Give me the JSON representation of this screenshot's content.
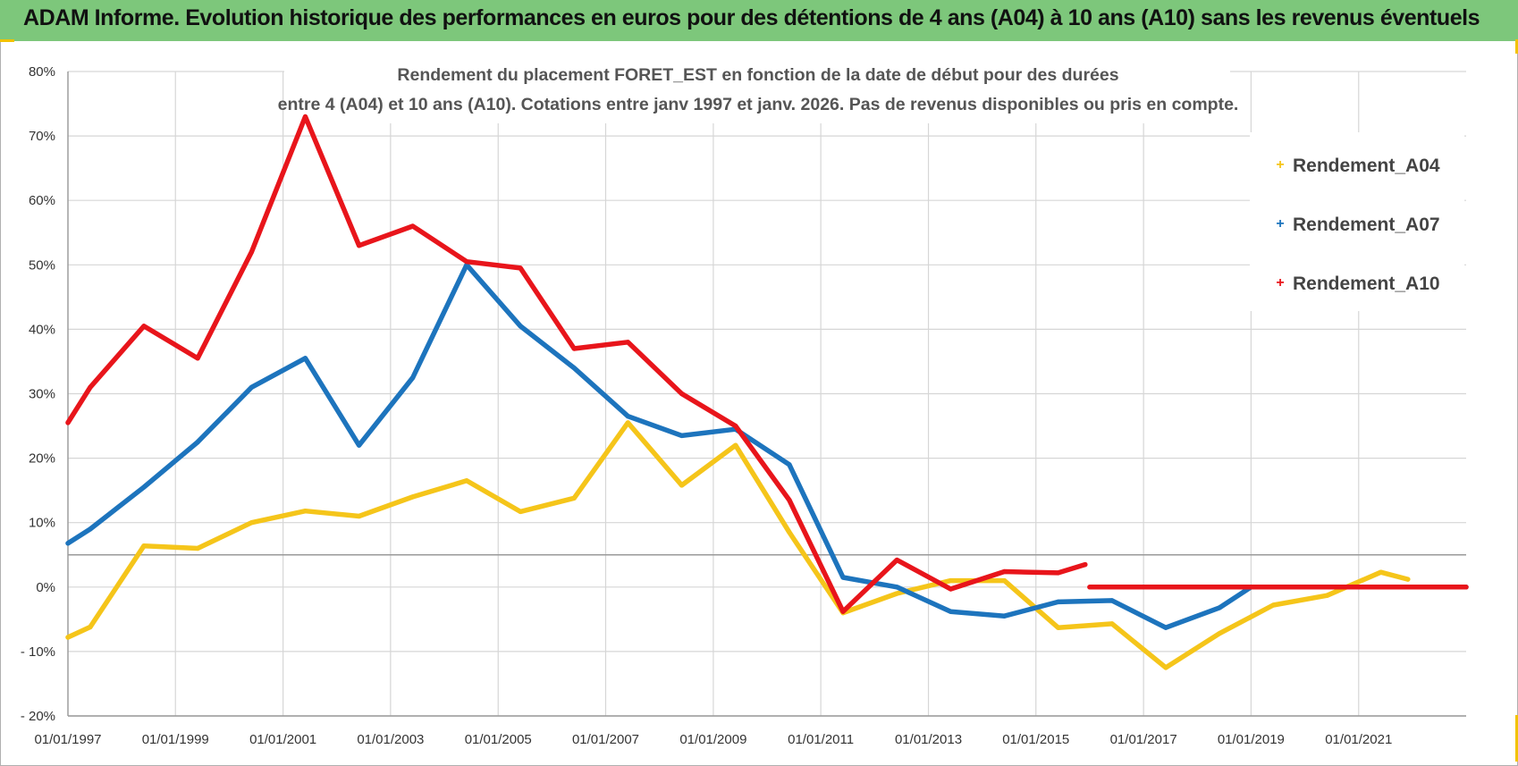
{
  "banner": {
    "title": "ADAM Informe. Evolution historique des performances en euros pour des détentions de 4 ans (A04) à 10 ans (A10) sans les revenus éventuels"
  },
  "colors": {
    "banner_bg": "#7dc77b",
    "A04": "#f5c51a",
    "A07": "#1d74bd",
    "A10": "#e8151b"
  },
  "chart_data": {
    "type": "line",
    "title_line1": "Rendement du placement FORET_EST en fonction de la date de début pour des durées",
    "title_line2": "entre 4 (A04) et 10 ans (A10).  Cotations entre janv 1997 et janv. 2026. Pas de revenus disponibles ou pris en compte.",
    "xlabel": "",
    "ylabel": "",
    "x_ticks": [
      "01/01/1997",
      "01/01/1999",
      "01/01/2001",
      "01/01/2003",
      "01/01/2005",
      "01/01/2007",
      "01/01/2009",
      "01/01/2011",
      "01/01/2013",
      "01/01/2015",
      "01/01/2017",
      "01/01/2019",
      "01/01/2021"
    ],
    "y_ticks": [
      "80%",
      "70%",
      "60%",
      "50%",
      "40%",
      "30%",
      "20%",
      "10%",
      "0%",
      "- 10%",
      "- 20%"
    ],
    "xlim": [
      "1997-01-01",
      "2023-01-01"
    ],
    "ylim": [
      -20,
      80
    ],
    "grid": true,
    "legend_position": "top-right",
    "series": [
      {
        "name": "Rendement_A04",
        "color": "#f5c51a",
        "points": [
          [
            "1997-01-01",
            -7.8
          ],
          [
            "1997-06-01",
            -6.2
          ],
          [
            "1998-06-01",
            6.4
          ],
          [
            "1999-06-01",
            6.0
          ],
          [
            "2000-06-01",
            10.0
          ],
          [
            "2001-06-01",
            11.8
          ],
          [
            "2002-06-01",
            11.0
          ],
          [
            "2003-06-01",
            14.0
          ],
          [
            "2004-06-01",
            16.5
          ],
          [
            "2005-06-01",
            11.7
          ],
          [
            "2006-06-01",
            13.8
          ],
          [
            "2007-06-01",
            25.5
          ],
          [
            "2008-06-01",
            15.8
          ],
          [
            "2009-06-01",
            22.0
          ],
          [
            "2010-06-01",
            8.5
          ],
          [
            "2011-06-01",
            -4.0
          ],
          [
            "2012-06-01",
            -1.0
          ],
          [
            "2013-06-01",
            1.0
          ],
          [
            "2014-06-01",
            1.0
          ],
          [
            "2015-06-01",
            -6.3
          ],
          [
            "2016-06-01",
            -5.7
          ],
          [
            "2017-06-01",
            -12.5
          ],
          [
            "2018-06-01",
            -7.2
          ],
          [
            "2019-06-01",
            -2.8
          ],
          [
            "2020-06-01",
            -1.3
          ],
          [
            "2021-06-01",
            2.3
          ],
          [
            "2021-12-01",
            1.2
          ]
        ]
      },
      {
        "name": "Rendement_A07",
        "color": "#1d74bd",
        "points": [
          [
            "1997-01-01",
            6.8
          ],
          [
            "1997-06-01",
            9.0
          ],
          [
            "1998-06-01",
            15.5
          ],
          [
            "1999-06-01",
            22.5
          ],
          [
            "2000-06-01",
            31.0
          ],
          [
            "2001-06-01",
            35.5
          ],
          [
            "2002-06-01",
            22.0
          ],
          [
            "2003-06-01",
            32.5
          ],
          [
            "2004-06-01",
            50.0
          ],
          [
            "2005-06-01",
            40.5
          ],
          [
            "2006-06-01",
            34.0
          ],
          [
            "2007-06-01",
            26.5
          ],
          [
            "2008-06-01",
            23.5
          ],
          [
            "2009-06-01",
            24.5
          ],
          [
            "2010-06-01",
            19.0
          ],
          [
            "2011-06-01",
            1.5
          ],
          [
            "2012-06-01",
            0.0
          ],
          [
            "2013-06-01",
            -3.8
          ],
          [
            "2014-06-01",
            -4.5
          ],
          [
            "2015-06-01",
            -2.3
          ],
          [
            "2016-06-01",
            -2.1
          ],
          [
            "2017-06-01",
            -6.3
          ],
          [
            "2018-06-01",
            -3.2
          ],
          [
            "2019-01-01",
            0.0
          ],
          [
            "2023-01-01",
            0.0
          ]
        ]
      },
      {
        "name": "Rendement_A10",
        "color": "#e8151b",
        "points": [
          [
            "1997-01-01",
            25.5
          ],
          [
            "1997-06-01",
            31.0
          ],
          [
            "1998-06-01",
            40.5
          ],
          [
            "1999-06-01",
            35.5
          ],
          [
            "2000-06-01",
            52.0
          ],
          [
            "2001-06-01",
            73.0
          ],
          [
            "2002-06-01",
            53.0
          ],
          [
            "2003-06-01",
            56.0
          ],
          [
            "2004-06-01",
            50.5
          ],
          [
            "2005-06-01",
            49.5
          ],
          [
            "2006-06-01",
            37.0
          ],
          [
            "2007-06-01",
            38.0
          ],
          [
            "2008-06-01",
            30.0
          ],
          [
            "2009-06-01",
            25.0
          ],
          [
            "2010-06-01",
            13.5
          ],
          [
            "2011-06-01",
            -3.8
          ],
          [
            "2012-06-01",
            4.2
          ],
          [
            "2013-06-01",
            -0.3
          ],
          [
            "2014-06-01",
            2.4
          ],
          [
            "2015-06-01",
            2.2
          ],
          [
            "2015-12-01",
            3.5
          ],
          [
            "2016-01-01",
            null
          ],
          [
            "2016-01-01",
            0.0
          ],
          [
            "2023-01-01",
            0.0
          ]
        ]
      }
    ]
  }
}
